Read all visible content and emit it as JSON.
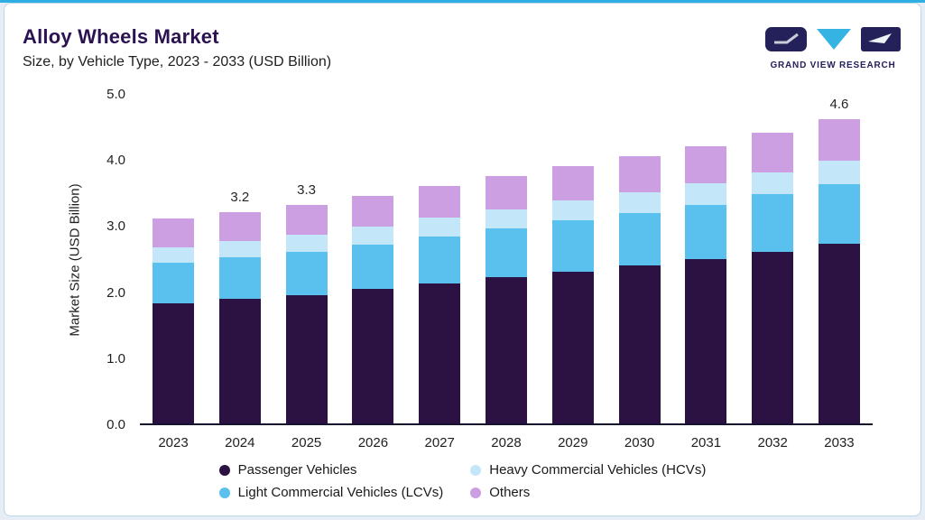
{
  "logo": {
    "text": "GRAND VIEW RESEARCH",
    "navy": "#24205a",
    "cyan": "#35b4e4"
  },
  "theme": {
    "accent": "#2faee3",
    "card_border": "#bcd8e8",
    "background": "#e7edf4",
    "title_color": "#2a1350",
    "axis_line": "#15132e"
  },
  "chart_data": {
    "type": "bar",
    "stacked": true,
    "title": "Alloy Wheels Market",
    "subtitle": "Size, by Vehicle Type, 2023 - 2033 (USD Billion)",
    "xlabel": "",
    "ylabel": "Market Size (USD Billion)",
    "ylim": [
      0,
      5
    ],
    "ytick_labels": [
      "0.0",
      "1.0",
      "2.0",
      "3.0",
      "4.0",
      "5.0"
    ],
    "grid": false,
    "legend_position": "bottom",
    "categories": [
      "2023",
      "2024",
      "2025",
      "2026",
      "2027",
      "2028",
      "2029",
      "2030",
      "2031",
      "2032",
      "2033"
    ],
    "series": [
      {
        "name": "Passenger Vehicles",
        "color": "#2b1242",
        "values": [
          1.82,
          1.88,
          1.94,
          2.03,
          2.12,
          2.21,
          2.3,
          2.39,
          2.48,
          2.6,
          2.72
        ]
      },
      {
        "name": "Light Commercial Vehicles (LCVs)",
        "color": "#5ac0ee",
        "values": [
          0.61,
          0.63,
          0.65,
          0.68,
          0.71,
          0.74,
          0.77,
          0.8,
          0.83,
          0.87,
          0.9
        ]
      },
      {
        "name": "Heavy Commercial Vehicles (HCVs)",
        "color": "#c3e7f8",
        "values": [
          0.24,
          0.25,
          0.26,
          0.27,
          0.28,
          0.29,
          0.3,
          0.31,
          0.32,
          0.33,
          0.35
        ]
      },
      {
        "name": "Others",
        "color": "#cc9fe2",
        "values": [
          0.43,
          0.44,
          0.45,
          0.47,
          0.49,
          0.51,
          0.53,
          0.55,
          0.57,
          0.6,
          0.63
        ]
      }
    ],
    "totals": [
      3.1,
      3.2,
      3.3,
      3.45,
      3.6,
      3.75,
      3.9,
      4.05,
      4.2,
      4.4,
      4.6
    ],
    "bar_labels": [
      {
        "category": "2024",
        "text": "3.2"
      },
      {
        "category": "2025",
        "text": "3.3"
      },
      {
        "category": "2033",
        "text": "4.6"
      }
    ],
    "legend_display_order": [
      "Passenger Vehicles",
      "Heavy Commercial Vehicles (HCVs)",
      "Light Commercial Vehicles (LCVs)",
      "Others"
    ]
  }
}
